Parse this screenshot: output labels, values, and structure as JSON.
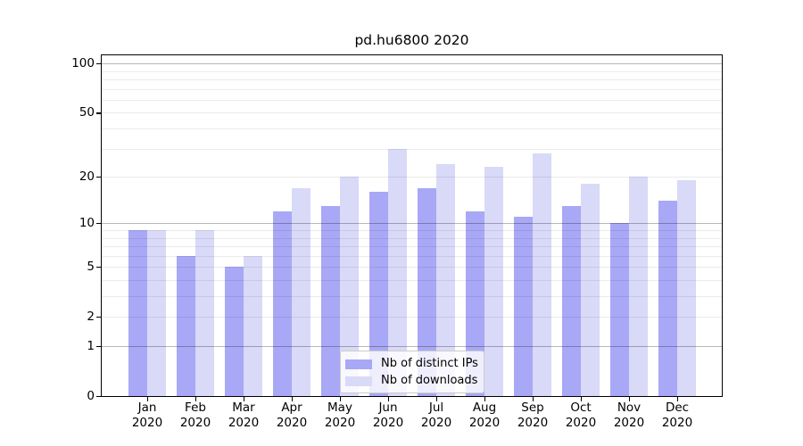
{
  "chart_data": {
    "type": "bar",
    "title": "pd.hu6800 2020",
    "categories": [
      "Jan",
      "Feb",
      "Mar",
      "Apr",
      "May",
      "Jun",
      "Jul",
      "Aug",
      "Sep",
      "Oct",
      "Nov",
      "Dec"
    ],
    "x_tick_second_line": "2020",
    "series": [
      {
        "name": "Nb of distinct IPs",
        "color": "#a8a8f6",
        "values": [
          9,
          6,
          5,
          12,
          13,
          16,
          17,
          12,
          11,
          13,
          10,
          14
        ]
      },
      {
        "name": "Nb of downloads",
        "color": "#d9d9f8",
        "values": [
          9,
          9,
          6,
          17,
          20,
          30,
          24,
          23,
          28,
          18,
          20,
          19
        ]
      }
    ],
    "y_axis": {
      "scale": "log1p",
      "tick_labels": [
        100,
        50,
        20,
        10,
        5,
        2,
        1,
        0
      ],
      "major_gridlines": [
        100,
        10,
        1
      ],
      "minor_gridlines": [
        2,
        3,
        4,
        5,
        6,
        7,
        8,
        9,
        20,
        30,
        40,
        50,
        60,
        70,
        80,
        90
      ],
      "ylim": [
        0,
        112
      ]
    },
    "legend_position": "lower center",
    "grid": true
  },
  "colors": {
    "background": "#ffffff",
    "spine": "#000000",
    "text": "#000000",
    "major_grid": "#b8b8b8",
    "minor_grid": "#ebebeb",
    "legend_border": "#cccccc",
    "bar_distinct_ips": "#a8a8f6",
    "bar_downloads": "#d9d9f8"
  }
}
